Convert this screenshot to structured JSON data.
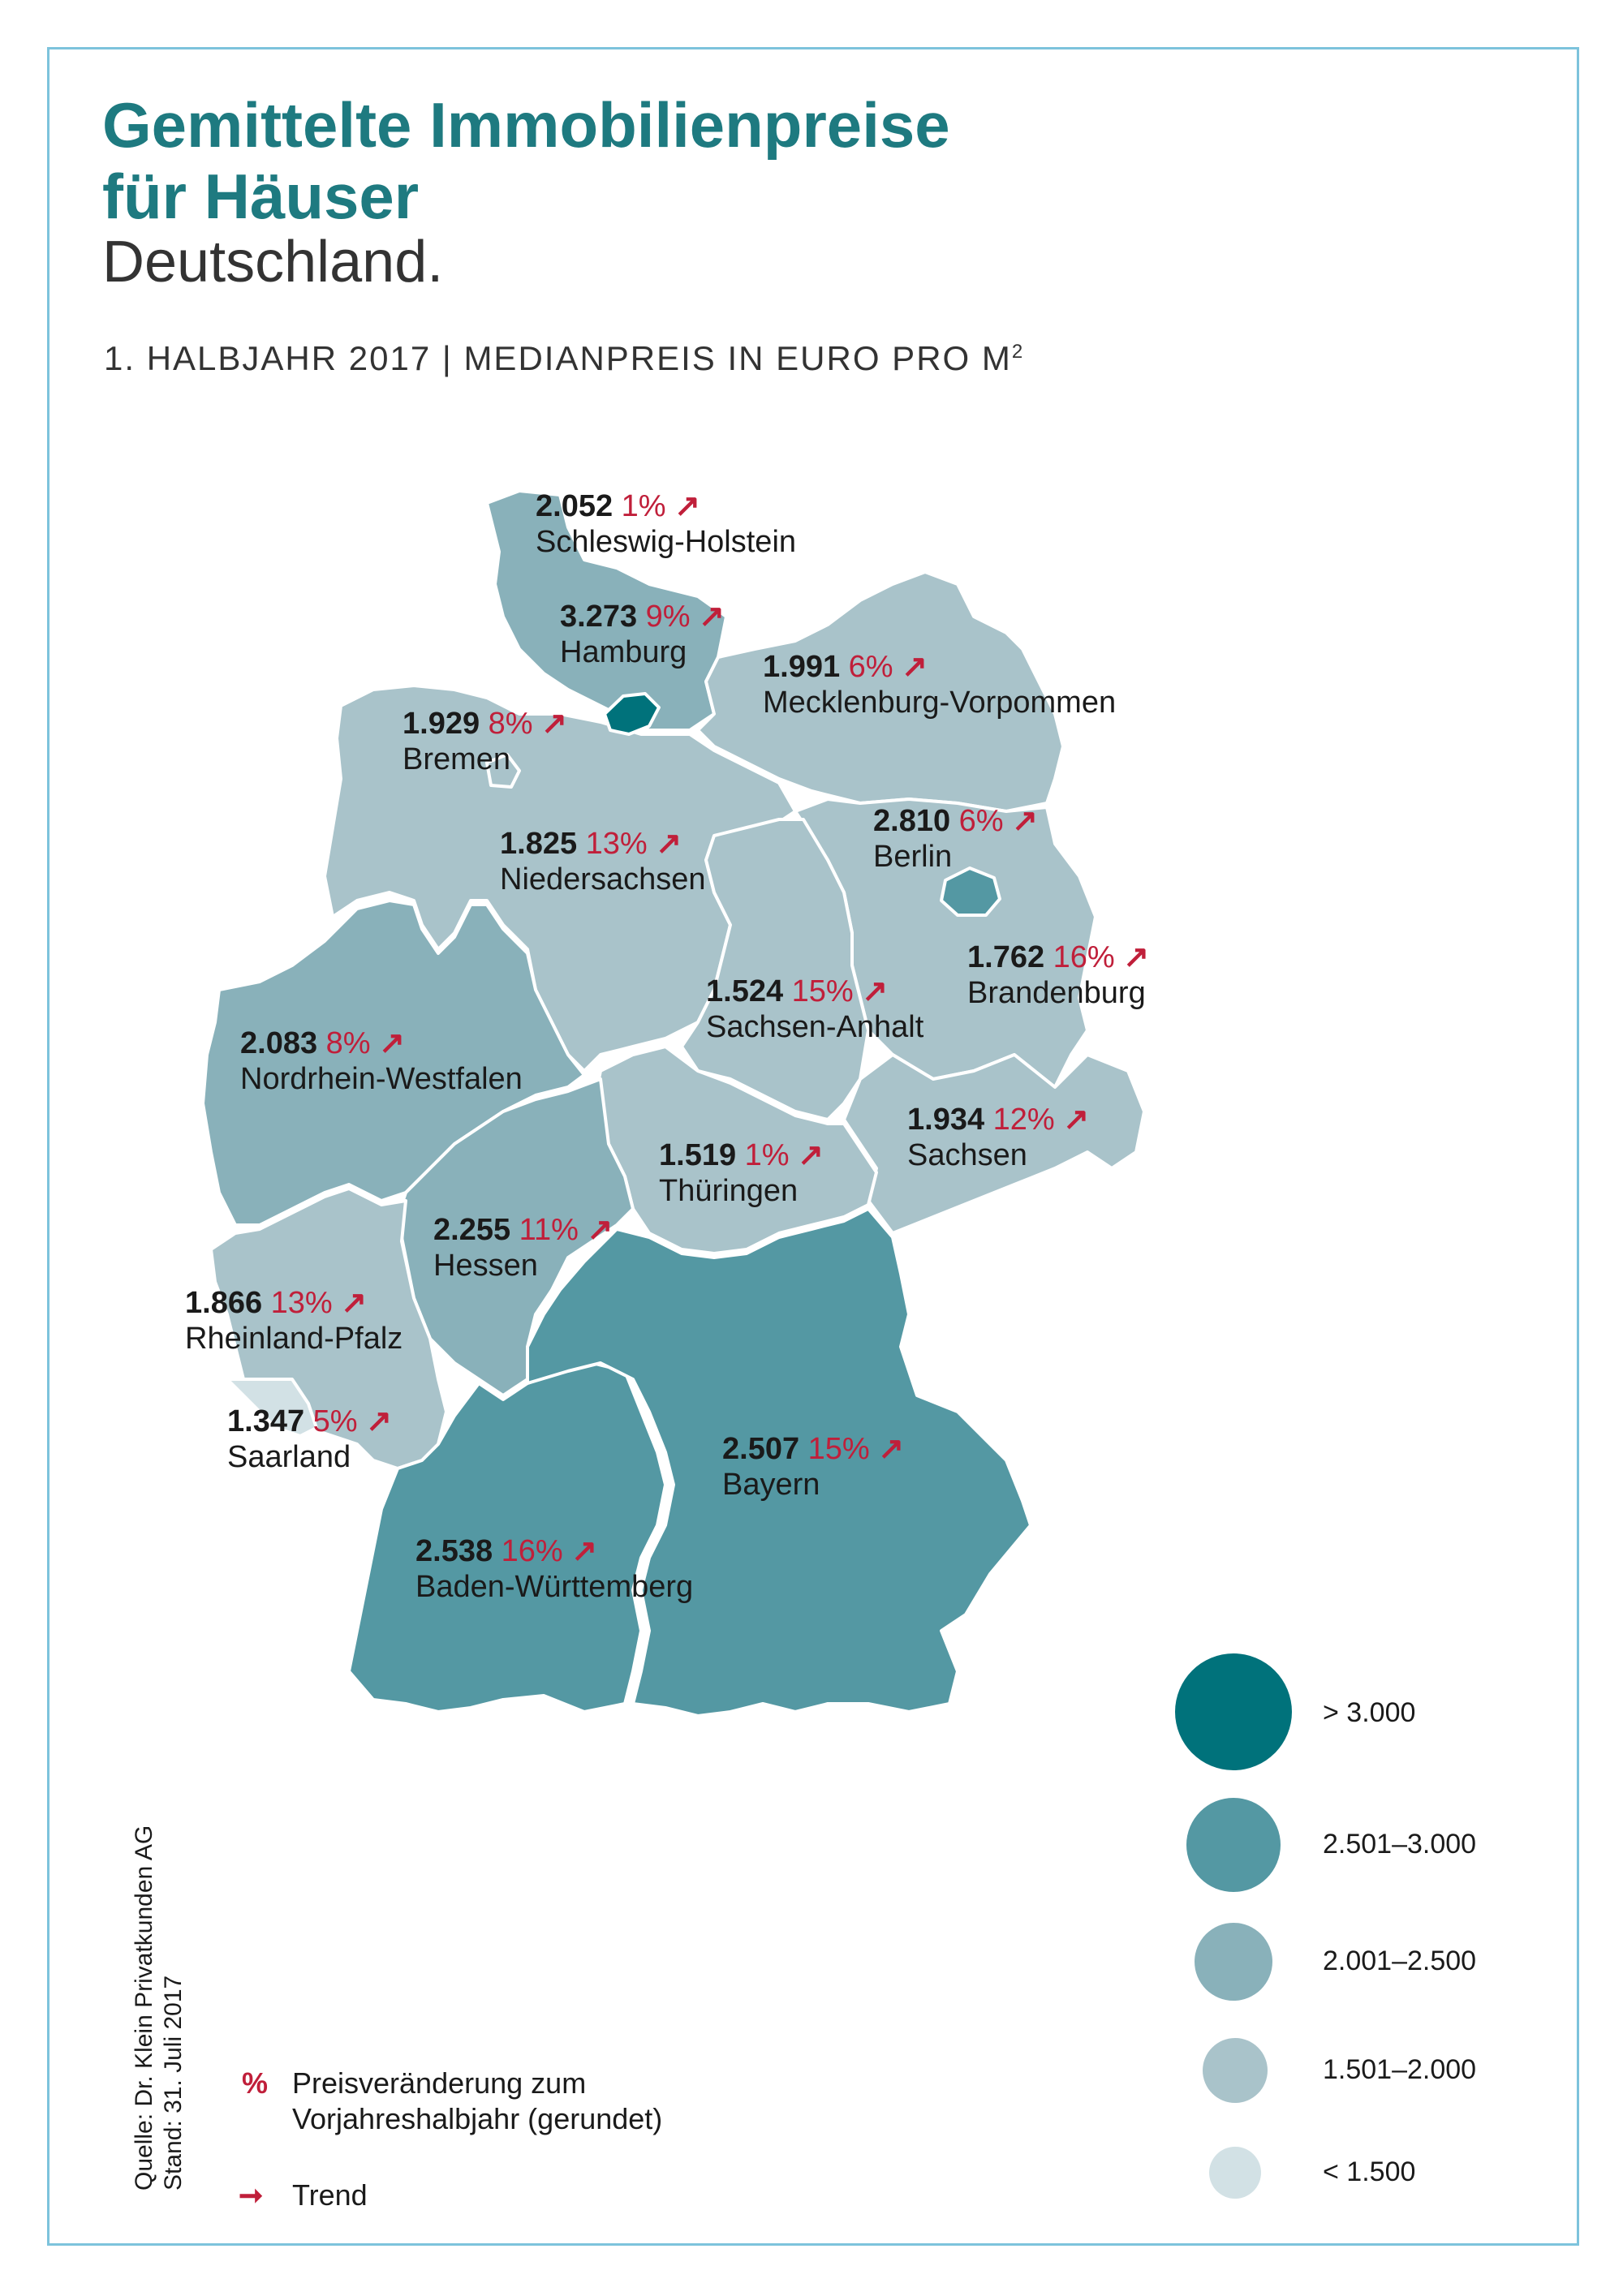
{
  "header": {
    "title_line1": "Gemittelte Immobilienpreise",
    "title_line2": "für Häuser",
    "subtitle": "Deutschland.",
    "subline": "1. HALBJAHR 2017 | MEDIANPREIS IN EURO PRO M",
    "subline_sup": "2"
  },
  "colors": {
    "title": "#1e7a80",
    "pct": "#c01f3a",
    "border": "#7dc3dc",
    "class_gt3000": "#00727b",
    "class_2501_3000": "#5498a3",
    "class_2001_2500": "#89b1ba",
    "class_1501_2000": "#a9c3ca",
    "class_lt1500": "#d2e1e5"
  },
  "states": [
    {
      "name": "Schleswig-Holstein",
      "price": "2.052",
      "change": "1%",
      "class": "2001-2500"
    },
    {
      "name": "Hamburg",
      "price": "3.273",
      "change": "9%",
      "class": ">3000"
    },
    {
      "name": "Mecklenburg-Vorpommen",
      "price": "1.991",
      "change": "6%",
      "class": "1501-2000"
    },
    {
      "name": "Bremen",
      "price": "1.929",
      "change": "8%",
      "class": "1501-2000"
    },
    {
      "name": "Berlin",
      "price": "2.810",
      "change": "6%",
      "class": "2501-3000"
    },
    {
      "name": "Niedersachsen",
      "price": "1.825",
      "change": "13%",
      "class": "1501-2000"
    },
    {
      "name": "Brandenburg",
      "price": "1.762",
      "change": "16%",
      "class": "1501-2000"
    },
    {
      "name": "Sachsen-Anhalt",
      "price": "1.524",
      "change": "15%",
      "class": "1501-2000"
    },
    {
      "name": "Nordrhein-Westfalen",
      "price": "2.083",
      "change": "8%",
      "class": "2001-2500"
    },
    {
      "name": "Sachsen",
      "price": "1.934",
      "change": "12%",
      "class": "1501-2000"
    },
    {
      "name": "Thüringen",
      "price": "1.519",
      "change": "1%",
      "class": "1501-2000"
    },
    {
      "name": "Hessen",
      "price": "2.255",
      "change": "11%",
      "class": "2001-2500"
    },
    {
      "name": "Rheinland-Pfalz",
      "price": "1.866",
      "change": "13%",
      "class": "1501-2000"
    },
    {
      "name": "Saarland",
      "price": "1.347",
      "change": "5%",
      "class": "<1500"
    },
    {
      "name": "Bayern",
      "price": "2.507",
      "change": "15%",
      "class": "2501-3000"
    },
    {
      "name": "Baden-Württemberg",
      "price": "2.538",
      "change": "16%",
      "class": "2501-3000"
    }
  ],
  "legend": [
    {
      "label": "> 3.000",
      "color": "#00727b"
    },
    {
      "label": "2.501–3.000",
      "color": "#5498a3"
    },
    {
      "label": "2.001–2.500",
      "color": "#89b1ba"
    },
    {
      "label": "1.501–2.000",
      "color": "#a9c3ca"
    },
    {
      "label": "< 1.500",
      "color": "#d2e1e5"
    }
  ],
  "notes": {
    "pct_symbol": "%",
    "pct_line1": "Preisveränderung zum",
    "pct_line2": "Vorjahreshalbjahr (gerundet)",
    "trend_symbol": "➞",
    "trend_label": "Trend"
  },
  "source": {
    "line1": "Quelle: Dr. Klein Privatkunden AG",
    "line2": "Stand: 31. Juli 2017"
  },
  "trend_arrow": "↗"
}
